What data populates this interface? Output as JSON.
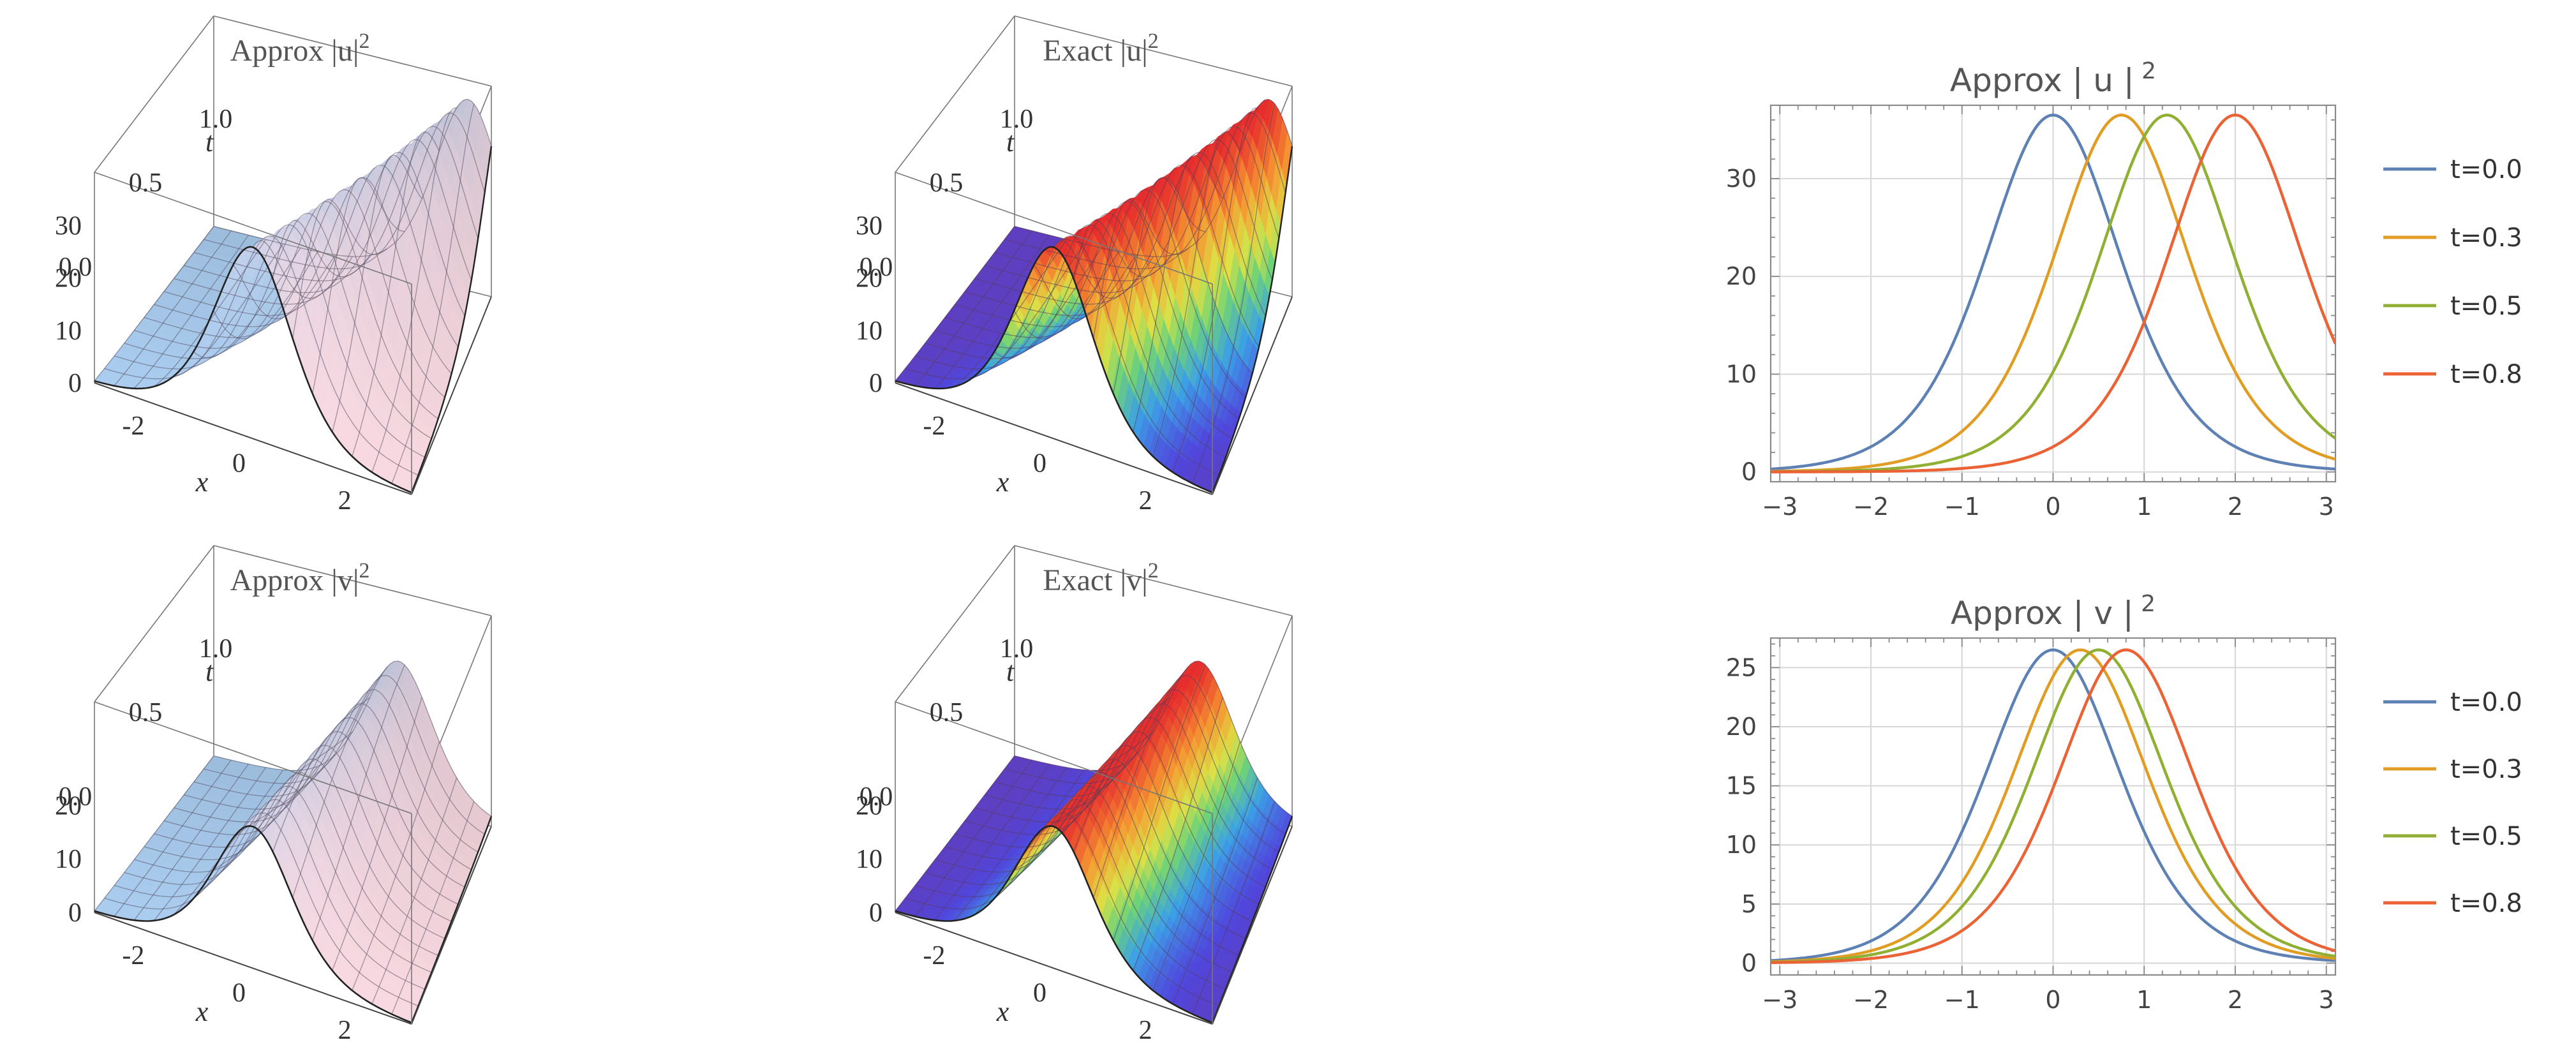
{
  "panels3d": [
    {
      "title_main": "Approx |u|",
      "title_sup": "2",
      "style": "pastel",
      "zticks": [
        "0",
        "10",
        "20",
        "30"
      ],
      "zmax": 36.5,
      "tticks": [
        "0.0",
        "0.5",
        "1.0"
      ],
      "xticks": [
        "-2",
        "0",
        "2"
      ],
      "xlabel": "x",
      "tlabel": "t",
      "speed": 2.5,
      "width": 1.0
    },
    {
      "title_main": "Exact |u|",
      "title_sup": "2",
      "style": "rainbow",
      "zticks": [
        "0",
        "10",
        "20",
        "30"
      ],
      "zmax": 36.5,
      "tticks": [
        "0.0",
        "0.5",
        "1.0"
      ],
      "xticks": [
        "-2",
        "0",
        "2"
      ],
      "xlabel": "x",
      "tlabel": "t",
      "speed": 2.5,
      "width": 1.0
    },
    {
      "title_main": "Approx |v|",
      "title_sup": "2",
      "style": "pastel",
      "zticks": [
        "0",
        "10",
        "20"
      ],
      "zmax": 26.5,
      "tticks": [
        "0.0",
        "0.5",
        "1.0"
      ],
      "xticks": [
        "-2",
        "0",
        "2"
      ],
      "xlabel": "x",
      "tlabel": "t",
      "speed": 1.0,
      "width": 1.0
    },
    {
      "title_main": "Exact |v|",
      "title_sup": "2",
      "style": "rainbow",
      "zticks": [
        "0",
        "10",
        "20"
      ],
      "zmax": 26.5,
      "tticks": [
        "0.0",
        "0.5",
        "1.0"
      ],
      "xticks": [
        "-2",
        "0",
        "2"
      ],
      "xlabel": "x",
      "tlabel": "t",
      "speed": 1.0,
      "width": 1.0
    }
  ],
  "chart_data": [
    {
      "type": "line",
      "title": "Approx | u | 2",
      "title_main": "Approx | u |",
      "title_sup": "2",
      "xlim": [
        -3.1,
        3.1
      ],
      "ylim": [
        -1,
        37.5
      ],
      "xticks": [
        -3,
        -2,
        -1,
        0,
        1,
        2,
        3
      ],
      "yticks": [
        0,
        10,
        20,
        30
      ],
      "grid": true,
      "legend_position": "right",
      "amplitude": 36.5,
      "width": 1.0,
      "series": [
        {
          "name": "t=0.0",
          "t": 0.0,
          "peak_x": 0.0,
          "color": "#5e81b5"
        },
        {
          "name": "t=0.3",
          "t": 0.3,
          "peak_x": 0.75,
          "color": "#e19c24"
        },
        {
          "name": "t=0.5",
          "t": 0.5,
          "peak_x": 1.25,
          "color": "#8fb032"
        },
        {
          "name": "t=0.8",
          "t": 0.8,
          "peak_x": 2.0,
          "color": "#eb6235"
        }
      ]
    },
    {
      "type": "line",
      "title": "Approx | v | 2",
      "title_main": "Approx | v |",
      "title_sup": "2",
      "xlim": [
        -3.1,
        3.1
      ],
      "ylim": [
        -1,
        27.5
      ],
      "xticks": [
        -3,
        -2,
        -1,
        0,
        1,
        2,
        3
      ],
      "yticks": [
        0,
        5,
        10,
        15,
        20,
        25
      ],
      "grid": true,
      "legend_position": "right",
      "amplitude": 26.5,
      "width": 1.0,
      "series": [
        {
          "name": "t=0.0",
          "t": 0.0,
          "peak_x": 0.0,
          "color": "#5e81b5"
        },
        {
          "name": "t=0.3",
          "t": 0.3,
          "peak_x": 0.3,
          "color": "#e19c24"
        },
        {
          "name": "t=0.5",
          "t": 0.5,
          "peak_x": 0.5,
          "color": "#8fb032"
        },
        {
          "name": "t=0.8",
          "t": 0.8,
          "peak_x": 0.8,
          "color": "#eb6235"
        }
      ]
    }
  ]
}
